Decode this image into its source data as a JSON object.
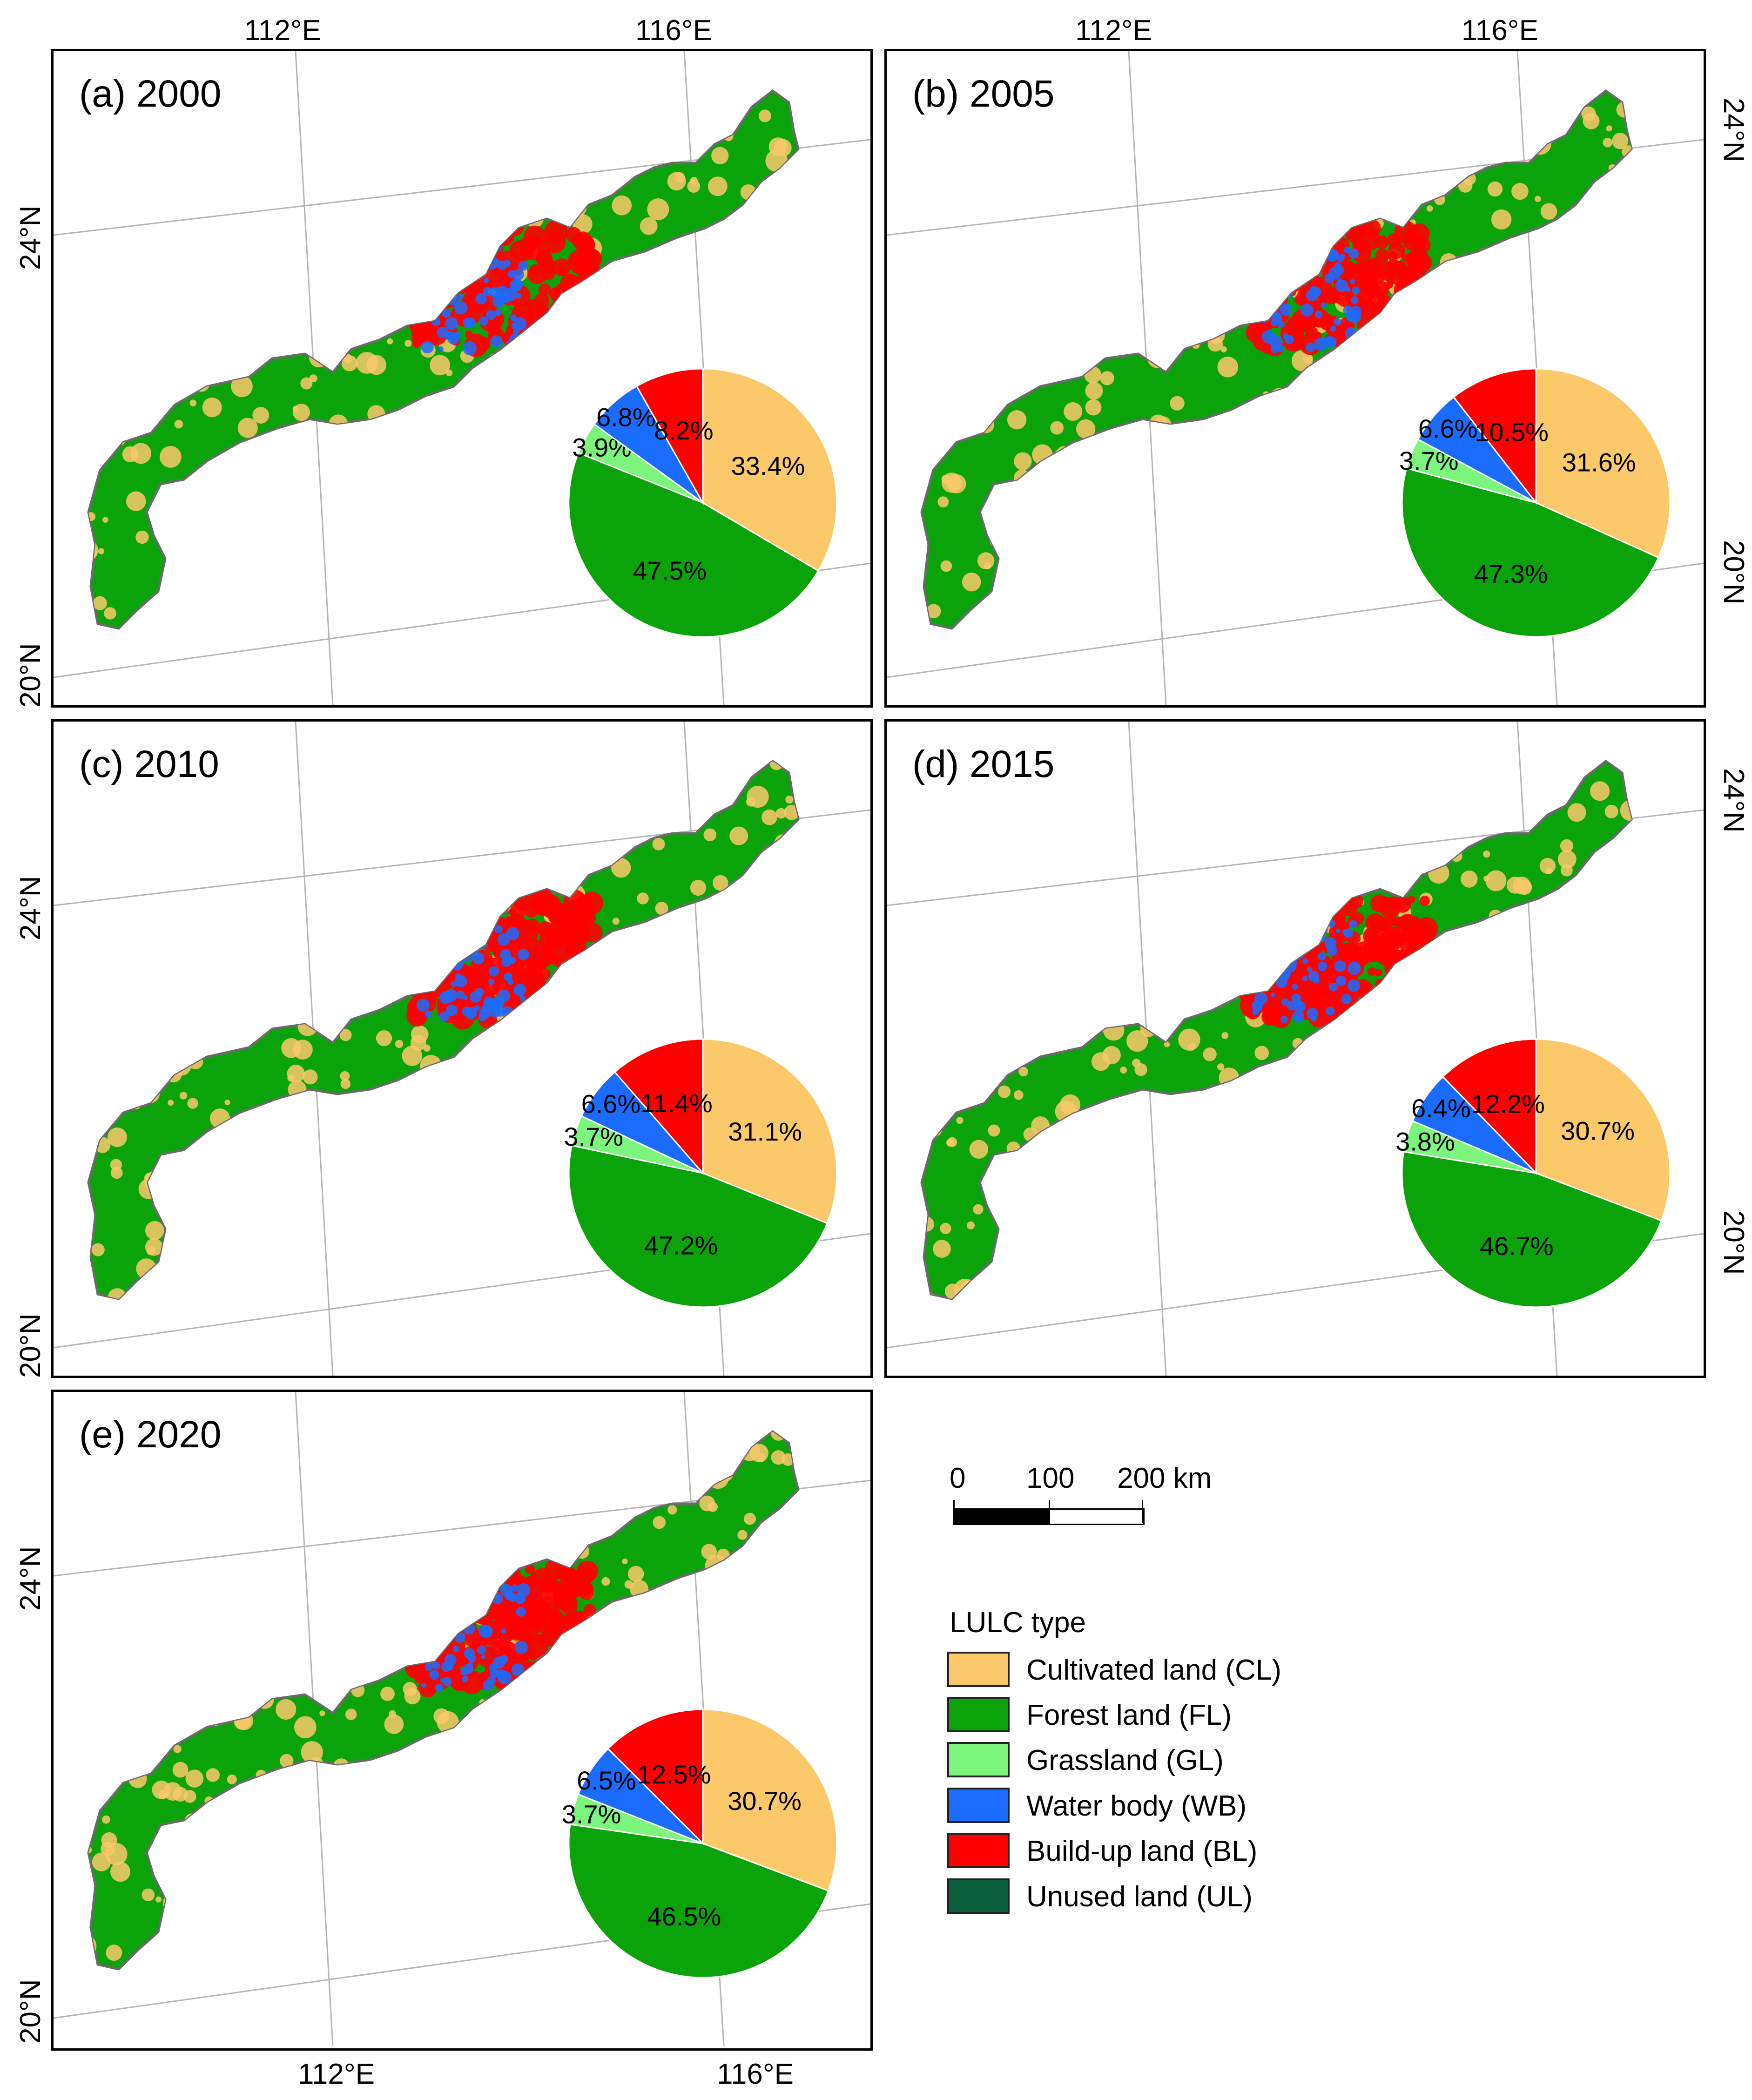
{
  "panels": [
    {
      "label": "(a) 2000",
      "cl": "33.4%",
      "fl": "47.5%",
      "gl": "3.9%",
      "wb": "6.8%",
      "bl": "8.2%"
    },
    {
      "label": "(b) 2005",
      "cl": "31.6%",
      "fl": "47.3%",
      "gl": "3.7%",
      "wb": "6.6%",
      "bl": "10.5%"
    },
    {
      "label": "(c) 2010",
      "cl": "31.1%",
      "fl": "47.2%",
      "gl": "3.7%",
      "wb": "6.6%",
      "bl": "11.4%"
    },
    {
      "label": "(d) 2015",
      "cl": "30.7%",
      "fl": "46.7%",
      "gl": "3.8%",
      "wb": "6.4%",
      "bl": "12.2%"
    },
    {
      "label": "(e) 2020",
      "cl": "30.7%",
      "fl": "46.5%",
      "gl": "3.7%",
      "wb": "6.5%",
      "bl": "12.5%"
    }
  ],
  "axes": {
    "lon_112": "112°E",
    "lon_116": "116°E",
    "lat_24": "24°N",
    "lat_20": "20°N"
  },
  "scale_bar": {
    "t0": "0",
    "t1": "100",
    "t2": "200 km"
  },
  "legend": {
    "title": "LULC type",
    "items": [
      {
        "label": "Cultivated land (CL)",
        "color": "#fcc96a"
      },
      {
        "label": "Forest land (FL)",
        "color": "#0aa30a"
      },
      {
        "label": "Grassland (GL)",
        "color": "#7cf57c"
      },
      {
        "label": "Water body (WB)",
        "color": "#1a6cff"
      },
      {
        "label": "Build-up land (BL)",
        "color": "#ff0000"
      },
      {
        "label": "Unused land (UL)",
        "color": "#0b5e3e"
      }
    ]
  },
  "chart_data": [
    {
      "type": "pie",
      "title": "(a) 2000",
      "labels": [
        "Cultivated land (CL)",
        "Forest land (FL)",
        "Grassland (GL)",
        "Water body (WB)",
        "Build-up land (BL)"
      ],
      "values": [
        33.4,
        47.5,
        3.9,
        6.8,
        8.2
      ]
    },
    {
      "type": "pie",
      "title": "(b) 2005",
      "labels": [
        "Cultivated land (CL)",
        "Forest land (FL)",
        "Grassland (GL)",
        "Water body (WB)",
        "Build-up land (BL)"
      ],
      "values": [
        31.6,
        47.3,
        3.7,
        6.6,
        10.5
      ]
    },
    {
      "type": "pie",
      "title": "(c) 2010",
      "labels": [
        "Cultivated land (CL)",
        "Forest land (FL)",
        "Grassland (GL)",
        "Water body (WB)",
        "Build-up land (BL)"
      ],
      "values": [
        31.1,
        47.2,
        3.7,
        6.6,
        11.4
      ]
    },
    {
      "type": "pie",
      "title": "(d) 2015",
      "labels": [
        "Cultivated land (CL)",
        "Forest land (FL)",
        "Grassland (GL)",
        "Water body (WB)",
        "Build-up land (BL)"
      ],
      "values": [
        30.7,
        46.7,
        3.8,
        6.4,
        12.2
      ]
    },
    {
      "type": "pie",
      "title": "(e) 2020",
      "labels": [
        "Cultivated land (CL)",
        "Forest land (FL)",
        "Grassland (GL)",
        "Water body (WB)",
        "Build-up land (BL)"
      ],
      "values": [
        30.7,
        46.5,
        3.7,
        6.5,
        12.5
      ]
    }
  ]
}
